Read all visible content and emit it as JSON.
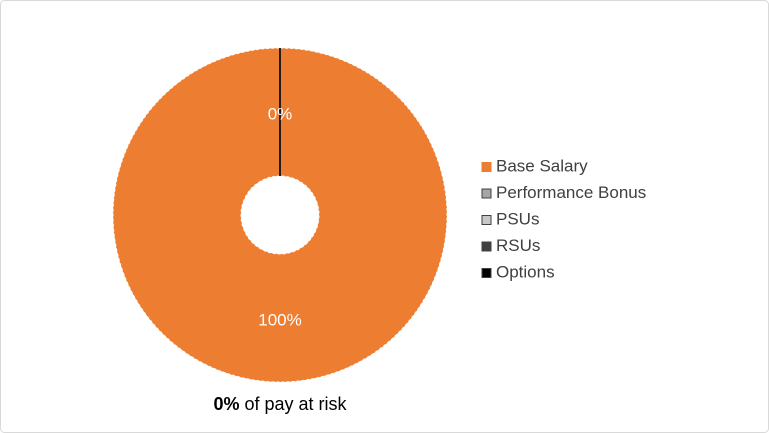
{
  "chart_data": {
    "type": "donut",
    "categories": [
      "Base Salary",
      "Performance Bonus",
      "PSUs",
      "RSUs",
      "Options"
    ],
    "values": [
      100,
      0,
      0,
      0,
      0
    ],
    "value_labels": [
      "100%",
      "0%",
      null,
      null,
      null
    ],
    "colors": [
      "#ed7d31",
      "#a5a5a5",
      "#c8c8c8",
      "#404040",
      "#000000"
    ],
    "legend": "right",
    "caption": {
      "bold": "0%",
      "text": "of pay at risk"
    }
  }
}
